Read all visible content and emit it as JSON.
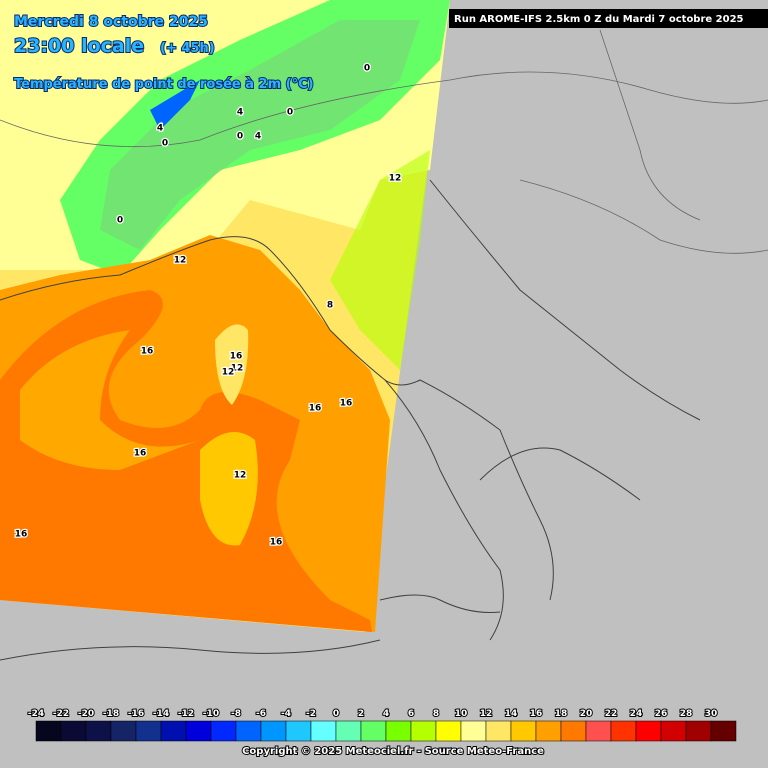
{
  "header": {
    "date": "Mercredi 8 octobre 2025",
    "time": "23:00 locale",
    "lead": "(+ 45h)",
    "parameter": "Température de point de rosée à 2m (°C)",
    "run": "Run AROME-IFS 2.5km 0 Z du Mardi 7 octobre 2025"
  },
  "contour_labels": [
    0,
    4,
    0,
    0,
    4,
    4,
    0,
    0,
    12,
    12,
    8,
    12,
    16,
    12,
    16,
    16,
    16,
    16,
    12,
    16,
    16
  ],
  "colorbar": {
    "ticks": [
      -24,
      -22,
      -20,
      -18,
      -16,
      -14,
      -12,
      -10,
      -8,
      -6,
      -4,
      -2,
      0,
      2,
      4,
      6,
      8,
      10,
      12,
      14,
      16,
      18,
      20,
      22,
      24,
      26,
      28,
      30
    ],
    "colors": [
      "#06061e",
      "#0a0a34",
      "#0e1048",
      "#142466",
      "#12308e",
      "#0010b0",
      "#0000dc",
      "#0028ff",
      "#0064ff",
      "#0096ff",
      "#1ec8ff",
      "#64ffff",
      "#64ffb4",
      "#64ff64",
      "#78ff00",
      "#b4ff00",
      "#ffff00",
      "#ffff96",
      "#ffe664",
      "#ffc800",
      "#ffa000",
      "#ff7800",
      "#ff5050",
      "#ff3200",
      "#ff0000",
      "#d20000",
      "#a00000",
      "#640000"
    ]
  },
  "footer": {
    "copyright": "Copyright © 2025 Meteociel.fr - Source Meteo-France"
  }
}
